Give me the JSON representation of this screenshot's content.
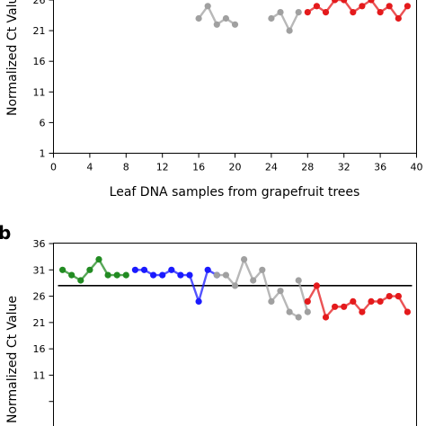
{
  "panels": [
    {
      "letter": "",
      "ylabel": "Normalized Ct Value",
      "xlabel": "Leaf DNA samples from grapefruit trees"
    },
    {
      "letter": "b",
      "ylabel": "Normalized Ct Value",
      "xlabel": ""
    }
  ],
  "chart_data": [
    {
      "type": "line",
      "title": "",
      "xlabel": "Leaf DNA samples from grapefruit trees",
      "ylabel": "Normalized Ct Value",
      "xlim": [
        0,
        40
      ],
      "ylim": [
        1,
        26
      ],
      "xticks": [
        0,
        4,
        8,
        12,
        16,
        20,
        24,
        28,
        32,
        36,
        40
      ],
      "yticks": [
        1,
        6,
        11,
        16,
        21,
        26
      ],
      "ytick_labels": [
        "1",
        "6",
        "11",
        "16",
        "21",
        "26"
      ],
      "grid": false,
      "series": [
        {
          "color": "#a0a0a0",
          "x": [
            16,
            17,
            18,
            19,
            20
          ],
          "y": [
            23,
            25,
            22,
            23,
            22
          ]
        },
        {
          "color": "#a0a0a0",
          "x": [
            24,
            25,
            26,
            27
          ],
          "y": [
            23,
            24,
            21,
            24
          ]
        },
        {
          "color": "#e41a1c",
          "x": [
            28,
            29,
            30,
            31,
            32,
            33,
            34,
            35,
            36,
            37,
            38,
            39
          ],
          "y": [
            24,
            25,
            24,
            26,
            26,
            24,
            25,
            26,
            24,
            25,
            23,
            25
          ]
        }
      ]
    },
    {
      "type": "line",
      "title": "",
      "xlabel": "",
      "ylabel": "Normalized Ct Value",
      "xlim": [
        0,
        40
      ],
      "ylim": [
        1,
        36
      ],
      "yticks": [
        6,
        11,
        16,
        21,
        26,
        31,
        36
      ],
      "ytick_labels": [
        "",
        "11",
        "16",
        "21",
        "26",
        "31",
        "36"
      ],
      "grid": false,
      "threshold": 28,
      "series": [
        {
          "color": "#228b22",
          "x": [
            1,
            2,
            3,
            4,
            5,
            6,
            7,
            8
          ],
          "y": [
            31,
            30,
            29,
            31,
            33,
            30,
            30,
            30
          ]
        },
        {
          "color": "#1a1aff",
          "x": [
            9,
            10,
            11,
            12,
            13,
            14,
            15,
            16,
            17,
            18
          ],
          "y": [
            31,
            31,
            30,
            30,
            31,
            30,
            30,
            25,
            31,
            30
          ]
        },
        {
          "color": "#a0a0a0",
          "x": [
            18,
            19,
            20,
            21,
            22,
            23,
            24,
            25,
            26,
            27
          ],
          "y": [
            30,
            30,
            28,
            33,
            29,
            31,
            25,
            27,
            23,
            22
          ]
        },
        {
          "color": "#a0a0a0",
          "x": [
            27,
            28
          ],
          "y": [
            29,
            23
          ]
        },
        {
          "color": "#e41a1c",
          "x": [
            28,
            29,
            30,
            31,
            32,
            33,
            34,
            35,
            36,
            37,
            38
          ],
          "y": [
            25,
            28,
            22,
            24,
            24,
            25,
            23,
            25,
            25,
            26,
            26
          ]
        },
        {
          "color": "#e41a1c",
          "x": [
            38,
            39
          ],
          "y": [
            26,
            23
          ]
        }
      ]
    }
  ]
}
